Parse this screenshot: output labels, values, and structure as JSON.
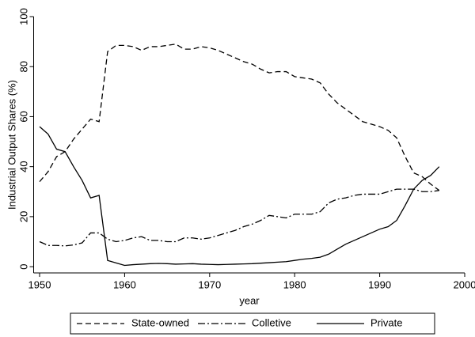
{
  "chart_data": {
    "type": "line",
    "x_label": "year",
    "y_label": "Industrial Output Shares (%)",
    "x": [
      1950,
      1951,
      1952,
      1953,
      1954,
      1955,
      1956,
      1957,
      1958,
      1959,
      1960,
      1961,
      1962,
      1963,
      1964,
      1965,
      1966,
      1967,
      1968,
      1969,
      1970,
      1971,
      1972,
      1973,
      1974,
      1975,
      1976,
      1977,
      1978,
      1979,
      1980,
      1981,
      1982,
      1983,
      1984,
      1985,
      1986,
      1987,
      1988,
      1989,
      1990,
      1991,
      1992,
      1993,
      1994,
      1995,
      1996,
      1997
    ],
    "series": [
      {
        "name": "State-owned",
        "color": "#000000",
        "line_style": "dashed",
        "values": [
          34,
          38,
          44,
          46,
          51,
          55,
          59,
          58,
          86,
          88.5,
          88.5,
          88,
          86.5,
          88,
          88,
          88.5,
          89,
          87,
          87,
          88,
          87.5,
          86.5,
          85,
          83.5,
          82,
          81,
          79,
          77.5,
          78,
          78,
          76,
          75.5,
          75,
          73.5,
          69,
          65.5,
          63,
          60.5,
          58,
          57,
          56,
          54.5,
          51.5,
          44,
          37.5,
          36,
          33,
          30.5
        ]
      },
      {
        "name": "Colletive",
        "color": "#000000",
        "line_style": "dashdot",
        "values": [
          10,
          8.5,
          8.5,
          8.3,
          8.7,
          9.5,
          13.5,
          13.5,
          11,
          10,
          10.5,
          11.5,
          12,
          10.5,
          10.5,
          10,
          10,
          11.5,
          11.5,
          11,
          11.5,
          12.5,
          13.5,
          14.5,
          16,
          17,
          18.5,
          20.5,
          20,
          19.5,
          21,
          21,
          21,
          22,
          25.5,
          27,
          27.5,
          28.5,
          29,
          29,
          29,
          30,
          31,
          31,
          31,
          30,
          30,
          30.5
        ]
      },
      {
        "name": "Private",
        "color": "#000000",
        "line_style": "solid",
        "values": [
          56,
          53,
          47,
          46,
          40,
          34.5,
          27.5,
          28.5,
          2.5,
          1.5,
          0.5,
          0.8,
          1,
          1.2,
          1.3,
          1.2,
          1,
          1.1,
          1.2,
          1,
          0.9,
          0.8,
          0.9,
          1,
          1.1,
          1.2,
          1.4,
          1.6,
          1.8,
          2,
          2.5,
          3,
          3.3,
          3.8,
          5,
          7,
          9,
          10.5,
          12,
          13.5,
          15,
          16,
          18.5,
          24.5,
          31,
          34.5,
          36.5,
          40
        ]
      }
    ],
    "xlim": [
      1949.3,
      2000
    ],
    "xticks": [
      1950,
      1960,
      1970,
      1980,
      1990,
      2000
    ],
    "ylim": [
      -2.5,
      100
    ],
    "yticks": [
      0,
      20,
      40,
      60,
      80,
      100
    ],
    "legend": "bottom"
  }
}
